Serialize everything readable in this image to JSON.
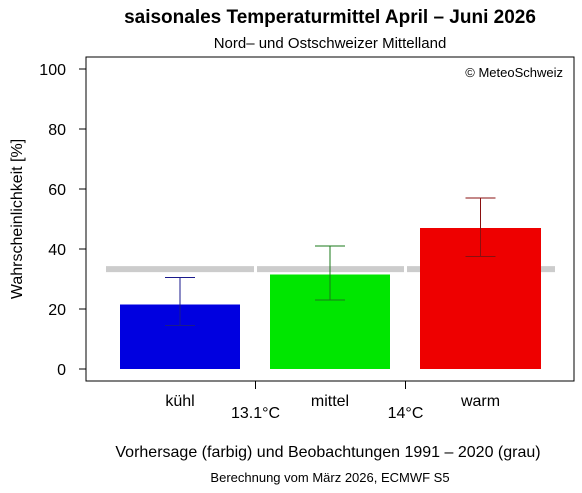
{
  "chart_data": {
    "type": "bar",
    "title": "saisonales Temperaturmittel April – Juni 2026",
    "subtitle": "Nord– und Ostschweizer Mittelland",
    "copyright": "© MeteoSchweiz",
    "ylabel": "Wahrscheinlichkeit [%]",
    "ylim": [
      0,
      100
    ],
    "yticks": [
      "0",
      "20",
      "40",
      "60",
      "80",
      "100"
    ],
    "categories": [
      "kühl",
      "mittel",
      "warm"
    ],
    "values": [
      21.5,
      31.5,
      47
    ],
    "error_low": [
      14.5,
      23,
      37.5
    ],
    "error_high": [
      30.5,
      41,
      57
    ],
    "colors": [
      "#0000e0",
      "#00e600",
      "#ee0000"
    ],
    "errorbar_colors": [
      "#1a1a8c",
      "#1a7a1a",
      "#8a1010"
    ],
    "climatology": {
      "value": 33.3,
      "color": "#cccccc",
      "label": "Beobachtungen 1991 – 2020 (grau)"
    },
    "thresholds": [
      "13.1°C",
      "14°C"
    ],
    "caption": "Vorhersage (farbig) und Beobachtungen 1991 – 2020 (grau)",
    "footnote": "Berechnung vom März 2026, ECMWF S5"
  }
}
